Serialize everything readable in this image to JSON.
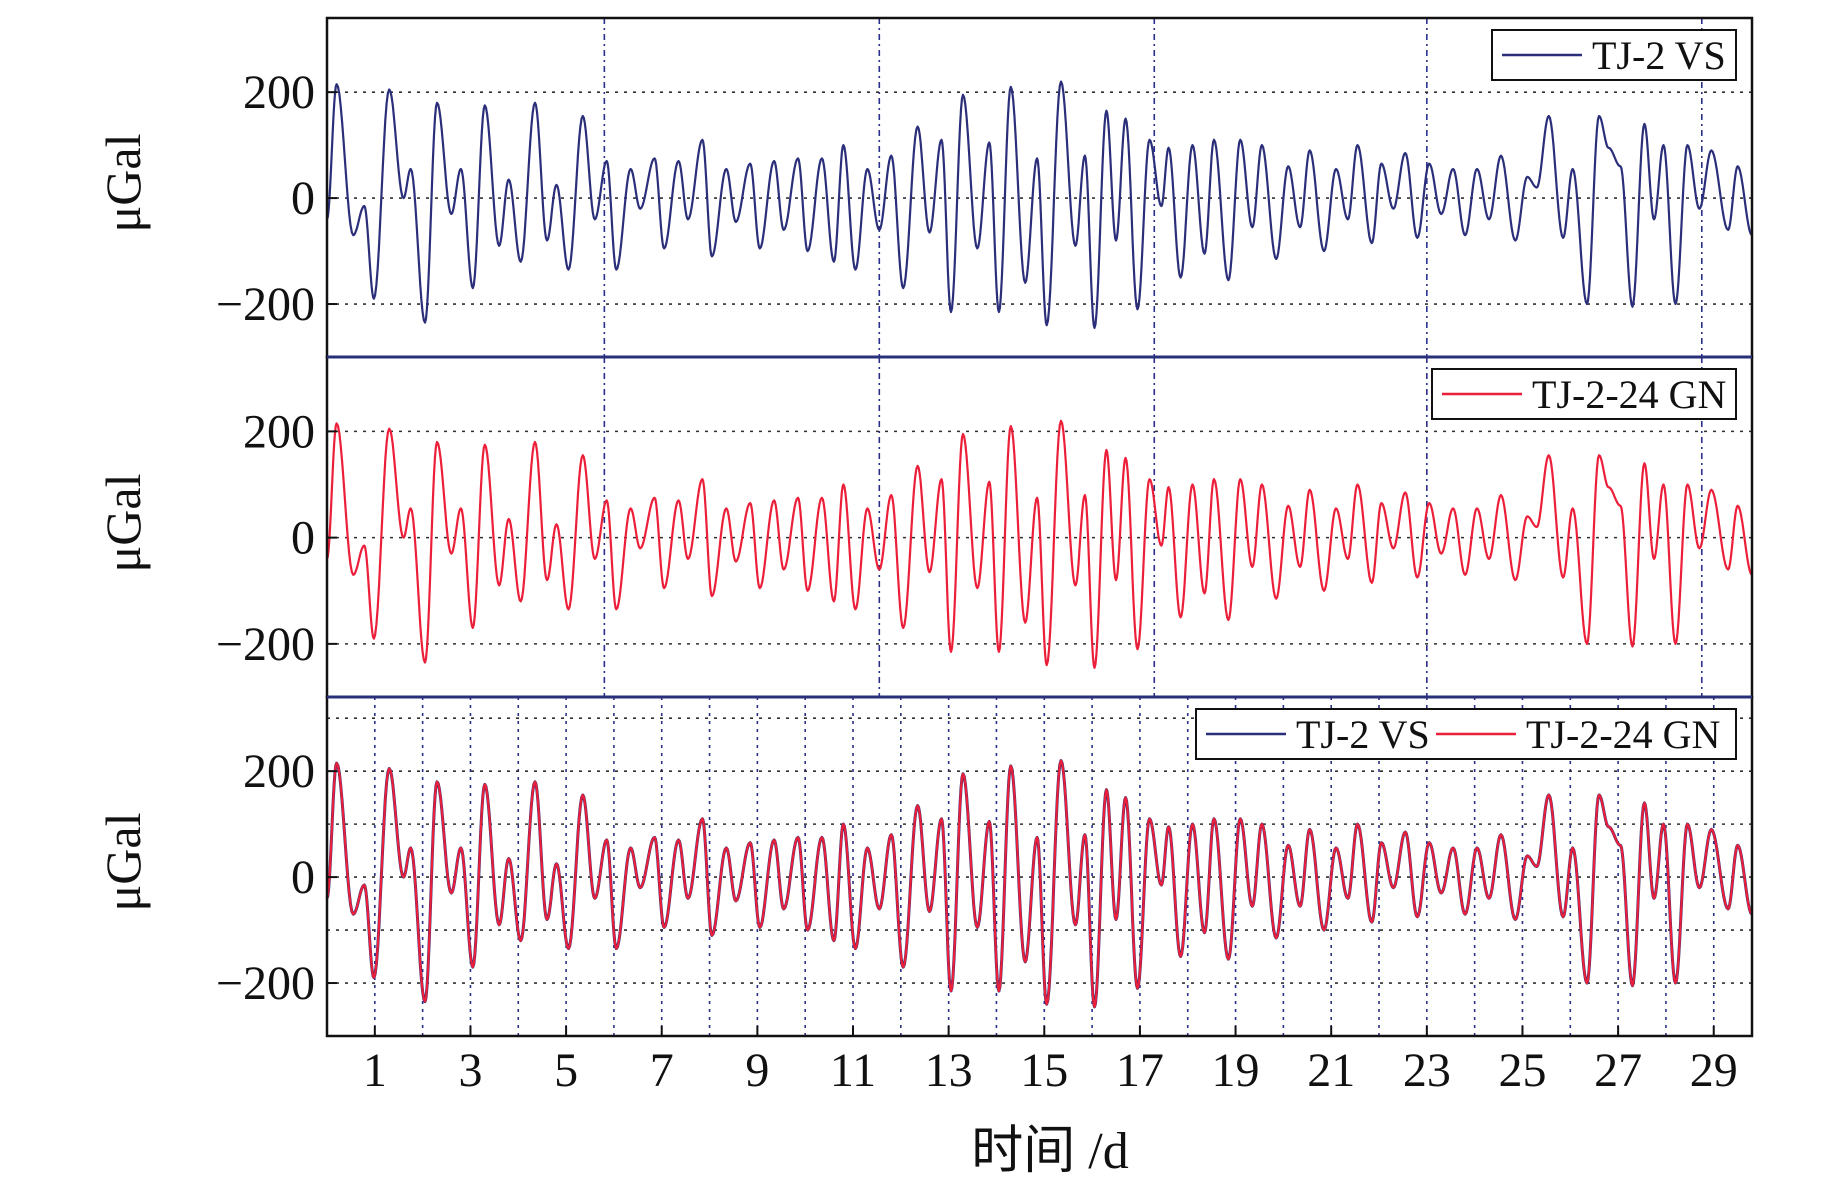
{
  "figure": {
    "xlabel": "时间 /d",
    "colors": {
      "vs": "#2b2f7a",
      "gn": "#ec1f3a",
      "grid_v": "#2a2f8a",
      "grid_h": "#303030",
      "frame": "#111111"
    }
  },
  "chart_data": [
    {
      "type": "line",
      "panel": "top",
      "ylabel": "μGal",
      "ylim": [
        -300,
        340
      ],
      "xlim": [
        0,
        29.8
      ],
      "yticks": [
        200,
        0,
        -200
      ],
      "ytick_labels": [
        "200",
        "0",
        "−200"
      ],
      "grid_x": [
        5.8,
        11.55,
        17.3,
        23.0,
        28.75
      ],
      "grid_y": [
        200,
        0,
        -200
      ],
      "legend": {
        "position": "top-right",
        "entries": [
          "TJ-2 VS"
        ]
      },
      "series": [
        {
          "name": "TJ-2 VS",
          "color": "#2b2f7a",
          "peaks": [
            [
              0.2,
              215
            ],
            [
              0.55,
              -70
            ],
            [
              0.78,
              -15
            ],
            [
              0.98,
              -190
            ],
            [
              1.3,
              205
            ],
            [
              1.6,
              0
            ],
            [
              1.75,
              55
            ],
            [
              2.05,
              -235
            ],
            [
              2.3,
              180
            ],
            [
              2.6,
              -30
            ],
            [
              2.8,
              55
            ],
            [
              3.05,
              -170
            ],
            [
              3.3,
              175
            ],
            [
              3.6,
              -90
            ],
            [
              3.8,
              35
            ],
            [
              4.05,
              -120
            ],
            [
              4.35,
              180
            ],
            [
              4.6,
              -80
            ],
            [
              4.8,
              25
            ],
            [
              5.05,
              -135
            ],
            [
              5.35,
              155
            ],
            [
              5.6,
              -40
            ],
            [
              5.85,
              70
            ],
            [
              6.05,
              -135
            ],
            [
              6.35,
              55
            ],
            [
              6.55,
              -20
            ],
            [
              6.85,
              75
            ],
            [
              7.05,
              -95
            ],
            [
              7.35,
              70
            ],
            [
              7.55,
              -40
            ],
            [
              7.85,
              110
            ],
            [
              8.05,
              -110
            ],
            [
              8.35,
              55
            ],
            [
              8.55,
              -45
            ],
            [
              8.85,
              65
            ],
            [
              9.05,
              -95
            ],
            [
              9.35,
              70
            ],
            [
              9.55,
              -60
            ],
            [
              9.85,
              75
            ],
            [
              10.05,
              -100
            ],
            [
              10.35,
              75
            ],
            [
              10.6,
              -120
            ],
            [
              10.8,
              100
            ],
            [
              11.05,
              -135
            ],
            [
              11.3,
              55
            ],
            [
              11.55,
              -60
            ],
            [
              11.8,
              80
            ],
            [
              12.05,
              -170
            ],
            [
              12.35,
              135
            ],
            [
              12.6,
              -65
            ],
            [
              12.85,
              110
            ],
            [
              13.05,
              -215
            ],
            [
              13.3,
              195
            ],
            [
              13.6,
              -95
            ],
            [
              13.85,
              105
            ],
            [
              14.05,
              -215
            ],
            [
              14.3,
              210
            ],
            [
              14.6,
              -160
            ],
            [
              14.85,
              75
            ],
            [
              15.05,
              -240
            ],
            [
              15.35,
              220
            ],
            [
              15.65,
              -90
            ],
            [
              15.85,
              80
            ],
            [
              16.05,
              -245
            ],
            [
              16.3,
              165
            ],
            [
              16.5,
              -80
            ],
            [
              16.7,
              150
            ],
            [
              16.95,
              -210
            ],
            [
              17.2,
              110
            ],
            [
              17.45,
              -15
            ],
            [
              17.6,
              95
            ],
            [
              17.85,
              -150
            ],
            [
              18.1,
              100
            ],
            [
              18.35,
              -105
            ],
            [
              18.55,
              110
            ],
            [
              18.85,
              -155
            ],
            [
              19.1,
              110
            ],
            [
              19.35,
              -55
            ],
            [
              19.55,
              100
            ],
            [
              19.85,
              -115
            ],
            [
              20.1,
              60
            ],
            [
              20.35,
              -55
            ],
            [
              20.55,
              90
            ],
            [
              20.85,
              -100
            ],
            [
              21.1,
              55
            ],
            [
              21.35,
              -40
            ],
            [
              21.55,
              100
            ],
            [
              21.85,
              -85
            ],
            [
              22.05,
              65
            ],
            [
              22.3,
              -20
            ],
            [
              22.55,
              85
            ],
            [
              22.8,
              -75
            ],
            [
              23.05,
              65
            ],
            [
              23.3,
              -30
            ],
            [
              23.55,
              55
            ],
            [
              23.8,
              -70
            ],
            [
              24.05,
              55
            ],
            [
              24.3,
              -40
            ],
            [
              24.55,
              80
            ],
            [
              24.85,
              -80
            ],
            [
              25.1,
              40
            ],
            [
              25.3,
              20
            ],
            [
              25.55,
              155
            ],
            [
              25.85,
              -75
            ],
            [
              26.05,
              55
            ],
            [
              26.35,
              -200
            ],
            [
              26.6,
              155
            ],
            [
              26.8,
              95
            ],
            [
              27.05,
              60
            ],
            [
              27.3,
              -205
            ],
            [
              27.55,
              140
            ],
            [
              27.75,
              -40
            ],
            [
              27.95,
              100
            ],
            [
              28.2,
              -200
            ],
            [
              28.45,
              100
            ],
            [
              28.7,
              -20
            ],
            [
              28.95,
              90
            ],
            [
              29.3,
              -60
            ],
            [
              29.5,
              60
            ],
            [
              29.8,
              -70
            ]
          ]
        }
      ]
    },
    {
      "type": "line",
      "panel": "middle",
      "ylabel": "μGal",
      "ylim": [
        -300,
        340
      ],
      "xlim": [
        0,
        29.8
      ],
      "yticks": [
        200,
        0,
        -200
      ],
      "ytick_labels": [
        "200",
        "0",
        "−200"
      ],
      "grid_x": [
        5.8,
        11.55,
        17.3,
        23.0,
        28.75
      ],
      "grid_y": [
        200,
        0,
        -200
      ],
      "legend": {
        "position": "top-right",
        "entries": [
          "TJ-2-24 GN"
        ]
      },
      "series": [
        {
          "name": "TJ-2-24 GN",
          "color": "#ec1f3a",
          "same_as": "TJ-2 VS"
        }
      ]
    },
    {
      "type": "line",
      "panel": "bottom",
      "ylabel": "μGal",
      "ylim": [
        -300,
        340
      ],
      "xlim": [
        0,
        29.8
      ],
      "yticks": [
        200,
        0,
        -200
      ],
      "ytick_labels": [
        "200",
        "0",
        "−200"
      ],
      "grid_x": [
        1,
        2,
        3,
        4,
        5,
        6,
        7,
        8,
        9,
        10,
        11,
        12,
        13,
        14,
        15,
        16,
        17,
        18,
        19,
        20,
        21,
        22,
        23,
        24,
        25,
        26,
        27,
        28,
        29
      ],
      "grid_y": [
        300,
        200,
        100,
        0,
        -100,
        -200,
        -300
      ],
      "xticks": [
        1,
        3,
        5,
        7,
        9,
        11,
        13,
        15,
        17,
        19,
        21,
        23,
        25,
        27,
        29
      ],
      "xtick_labels": [
        "1",
        "3",
        "5",
        "7",
        "9",
        "11",
        "13",
        "15",
        "17",
        "19",
        "21",
        "23",
        "25",
        "27",
        "29"
      ],
      "legend": {
        "position": "top-right",
        "entries": [
          "TJ-2 VS",
          "TJ-2-24 GN"
        ]
      },
      "series": [
        {
          "name": "TJ-2 VS",
          "color": "#2b2f7a",
          "same_as": "TJ-2 VS"
        },
        {
          "name": "TJ-2-24 GN",
          "color": "#ec1f3a",
          "same_as": "TJ-2 VS"
        }
      ]
    }
  ]
}
